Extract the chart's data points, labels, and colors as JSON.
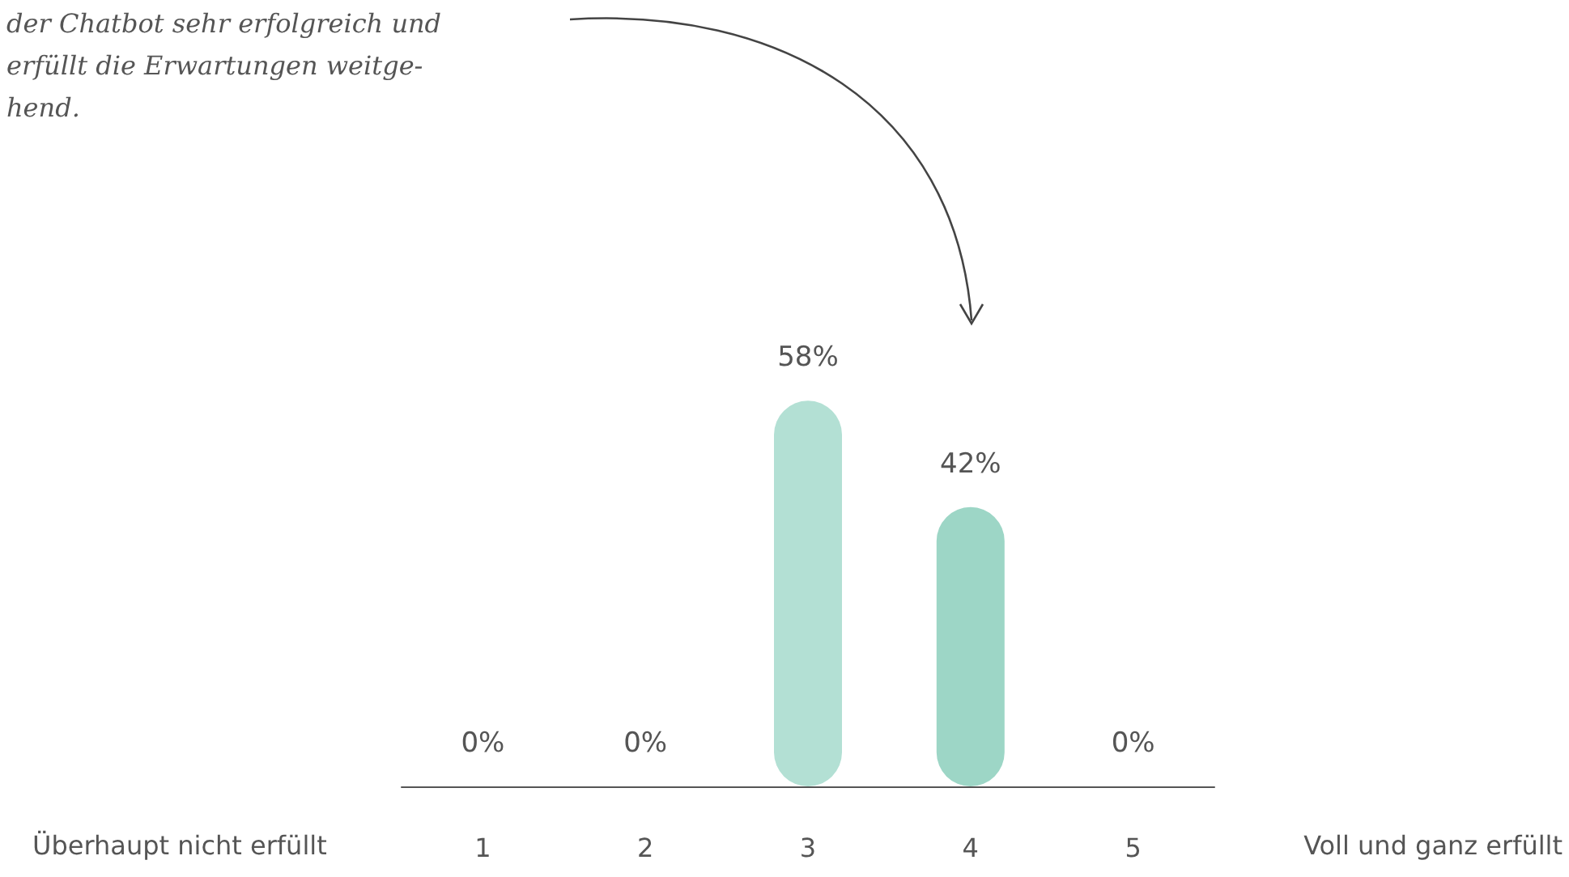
{
  "chart_data": {
    "type": "bar",
    "categories": [
      "1",
      "2",
      "3",
      "4",
      "5"
    ],
    "values": [
      0,
      0,
      58,
      42,
      0
    ],
    "value_labels": [
      "0%",
      "0%",
      "58%",
      "42%",
      "0%"
    ],
    "colors": [
      "#b3e0d4",
      "#b3e0d4",
      "#b3e0d4",
      "#9dd6c6",
      "#9dd6c6"
    ],
    "annotations": [
      "der Chatbot sehr erfolgreich und\nerfüllt die Erwartungen weitge-\nhend.",
      "Überhaupt nicht erfüllt",
      "Voll und ganz erfüllt"
    ]
  }
}
